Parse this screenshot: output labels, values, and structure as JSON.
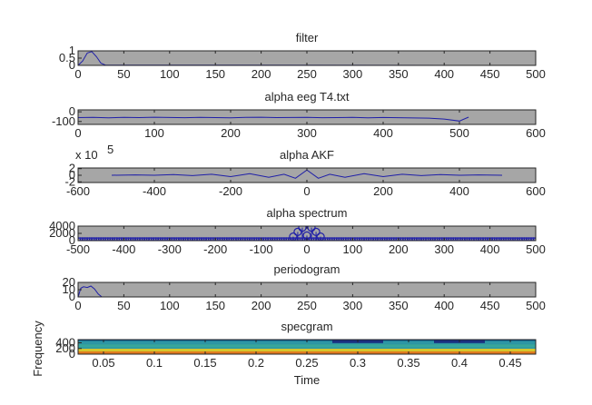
{
  "figure": {
    "background": "#ffffff",
    "axes_bg": "#a6a6a6",
    "line_color": "#1f1fa8",
    "tick_color": "#262626"
  },
  "chart_data": [
    {
      "type": "line",
      "title": "filter",
      "xlim": [
        0,
        500
      ],
      "ylim": [
        0,
        1
      ],
      "xticks": [
        "0",
        "50",
        "100",
        "150",
        "200",
        "250",
        "300",
        "350",
        "400",
        "450",
        "500"
      ],
      "yticks": [
        "0",
        "0.5",
        "1"
      ],
      "series": [
        {
          "x": [
            0,
            5,
            10,
            15,
            20,
            25,
            30,
            500
          ],
          "y": [
            0,
            0.3,
            0.85,
            0.95,
            0.6,
            0.15,
            0.02,
            0
          ]
        }
      ]
    },
    {
      "type": "line",
      "title": "alpha eeg T4.txt",
      "xlim": [
        0,
        600
      ],
      "ylim": [
        -130,
        20
      ],
      "xticks": [
        "0",
        "100",
        "200",
        "300",
        "400",
        "500",
        "600"
      ],
      "yticks": [
        "-100",
        "0"
      ],
      "series": [
        {
          "x": [
            0,
            20,
            40,
            60,
            80,
            100,
            120,
            140,
            160,
            180,
            200,
            220,
            240,
            260,
            280,
            300,
            320,
            340,
            360,
            380,
            400,
            420,
            440,
            460,
            480,
            500,
            512
          ],
          "y": [
            -60,
            -58,
            -62,
            -57,
            -60,
            -56,
            -59,
            -61,
            -57,
            -60,
            -62,
            -58,
            -56,
            -60,
            -59,
            -57,
            -61,
            -60,
            -58,
            -62,
            -59,
            -61,
            -63,
            -65,
            -75,
            -95,
            -55
          ]
        }
      ]
    },
    {
      "type": "line",
      "title": "alpha AKF",
      "xlim": [
        -600,
        600
      ],
      "ylim": [
        -2.2,
        2.2
      ],
      "yscale_label": "x 10",
      "yscale_exp": "5",
      "xticks": [
        "-600",
        "-400",
        "-200",
        "0",
        "200",
        "400",
        "600"
      ],
      "yticks": [
        "-2",
        "0",
        "2"
      ],
      "series": [
        {
          "x": [
            -512,
            -450,
            -400,
            -350,
            -300,
            -250,
            -200,
            -150,
            -100,
            -60,
            -30,
            0,
            30,
            60,
            100,
            150,
            200,
            250,
            300,
            350,
            400,
            450,
            512
          ],
          "y": [
            0,
            0.1,
            0,
            0.2,
            -0.1,
            0.3,
            -0.4,
            0.5,
            -0.6,
            0.3,
            -0.9,
            1.6,
            -0.9,
            0.3,
            -0.6,
            0.5,
            -0.4,
            0.3,
            -0.1,
            0.2,
            0,
            0.1,
            0
          ]
        }
      ]
    },
    {
      "type": "scatter",
      "title": "alpha spectrum",
      "xlim": [
        -500,
        500
      ],
      "ylim": [
        0,
        4000
      ],
      "xticks": [
        "-500",
        "-400",
        "-300",
        "-200",
        "-100",
        "0",
        "100",
        "200",
        "300",
        "400",
        "500"
      ],
      "yticks": [
        "0",
        "2000",
        "4000"
      ],
      "peaks": [
        {
          "x": -30,
          "y": 1100
        },
        {
          "x": -20,
          "y": 2400
        },
        {
          "x": -10,
          "y": 3600
        },
        {
          "x": 0,
          "y": 1400
        },
        {
          "x": 10,
          "y": 3600
        },
        {
          "x": 20,
          "y": 2400
        },
        {
          "x": 30,
          "y": 1100
        }
      ],
      "baseline_value": 0,
      "baseline_step": 5
    },
    {
      "type": "line",
      "title": "periodogram",
      "xlim": [
        0,
        500
      ],
      "ylim": [
        0,
        20
      ],
      "xticks": [
        "0",
        "50",
        "100",
        "150",
        "200",
        "250",
        "300",
        "350",
        "400",
        "450",
        "500"
      ],
      "yticks": [
        "0",
        "10",
        "20"
      ],
      "series": [
        {
          "x": [
            0,
            3,
            6,
            10,
            14,
            18,
            22,
            26,
            500
          ],
          "y": [
            0,
            12,
            14,
            13,
            15,
            11,
            4,
            0,
            0
          ]
        }
      ]
    },
    {
      "type": "heatmap",
      "title": "specgram",
      "xlabel": "Time",
      "ylabel": "Frequency",
      "xlim": [
        0.025,
        0.475
      ],
      "ylim": [
        0,
        512
      ],
      "xticks": [
        "0.05",
        "0.1",
        "0.15",
        "0.2",
        "0.25",
        "0.3",
        "0.35",
        "0.4",
        "0.45"
      ],
      "xtick_values": [
        0.05,
        0.1,
        0.15,
        0.2,
        0.25,
        0.3,
        0.35,
        0.4,
        0.45
      ],
      "yticks": [
        "0",
        "200",
        "400"
      ],
      "ytick_values": [
        0,
        200,
        400
      ],
      "columns": [
        0.05,
        0.1,
        0.15,
        0.2,
        0.25,
        0.3,
        0.35,
        0.4,
        0.45
      ],
      "row_colors": [
        "#0b4f8a",
        "#2a8fa0",
        "#2f9aa6",
        "#2c94a3",
        "#34a19c",
        "#3aa89a",
        "#35a39d",
        "#2e97a4"
      ],
      "col_darken": [
        0,
        0,
        0,
        0,
        0,
        1,
        0,
        1,
        0
      ],
      "band_low": [
        "#d6c62c",
        "#e07b1f"
      ],
      "dark_color": "#1a2f80"
    }
  ]
}
